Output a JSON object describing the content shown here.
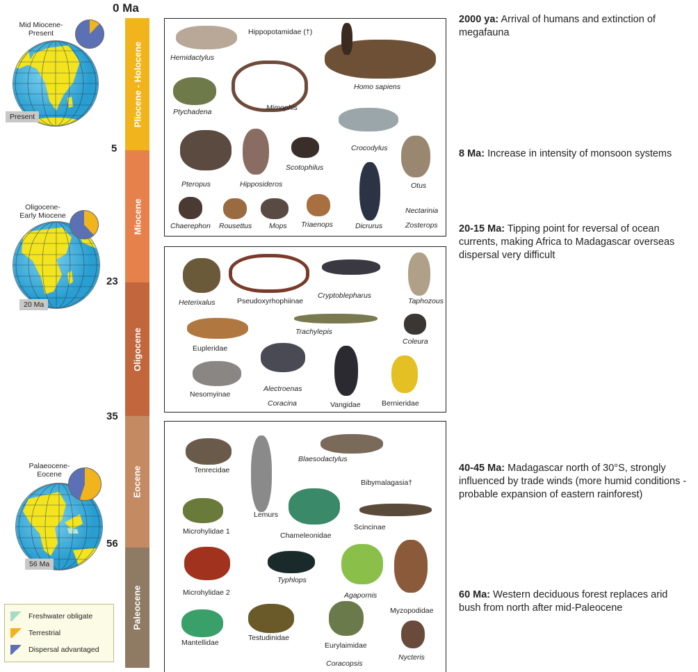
{
  "timeline": {
    "ticks": [
      "0 Ma",
      "5",
      "23",
      "35",
      "56"
    ],
    "eras": [
      "Pliocene - Holocene",
      "Miocene",
      "Oligocene",
      "Eocene",
      "Paleocene"
    ],
    "colors": [
      "#f2b41c",
      "#e7814b",
      "#c2663d",
      "#c48a62",
      "#8f7a63"
    ]
  },
  "globes": [
    {
      "title": "Mid Miocene-\nPresent",
      "tag": "Present",
      "pie_dispersal_fraction": 0.88
    },
    {
      "title": "Oligocene-\nEarly Miocene",
      "tag": "20 Ma",
      "pie_dispersal_fraction": 0.62
    },
    {
      "title": "Palaeocene-\nEocene",
      "tag": "56 Ma",
      "pie_dispersal_fraction": 0.45
    }
  ],
  "legend": {
    "items": [
      {
        "label": "Freshwater obligate",
        "color": "#a6dcc5"
      },
      {
        "label": "Terrestrial",
        "color": "#f2b41c"
      },
      {
        "label": "Dispersal advantaged",
        "color": "#5b70b5"
      }
    ]
  },
  "panel1": {
    "hippopotamidae": "Hippopotamidae (†)",
    "hemidactylus": "Hemidactylus",
    "ptychadena": "Ptychadena",
    "mimophis": "Mimophis",
    "homo": "Homo sapiens",
    "crocodylus": "Crocodylus",
    "pteropus": "Pteropus",
    "hipposideros": "Hipposideros",
    "scotophilus": "Scotophilus",
    "otus": "Otus",
    "dicrurus": "Dicrurus",
    "nectarinia": "Nectarinia",
    "zosterops": "Zosterops",
    "chaerephon": "Chaerephon",
    "rousettus": "Rousettus",
    "mops": "Mops",
    "triaenops": "Triaenops"
  },
  "panel2": {
    "heterixalus": "Heterixalus",
    "pseudoxy": "Pseudoxyrhophiinae",
    "cryptoblepharus": "Cryptoblepharus",
    "taphozous": "Taphozous",
    "eupleridae": "Eupleridae",
    "trachylepis": "Trachylepis",
    "coleura": "Coleura",
    "nesomyinae": "Nesomyinae",
    "alectroenas": "Alectroenas",
    "coracina": "Coracina",
    "vangidae": "Vangidae",
    "bernieridae": "Bernieridae"
  },
  "panel3": {
    "tenrecidae": "Tenrecidae",
    "blaesodactylus": "Blaesodactylus",
    "bibymalagasia": "Bibymalagasia†",
    "lemurs": "Lemurs",
    "microhylidae1": "Microhylidae 1",
    "chameleonidae": "Chameleonidae",
    "scincinae": "Scincinae",
    "microhylidae2": "Microhylidae 2",
    "typhlops": "Typhlops",
    "agapornis": "Agapornis",
    "myzopodidae": "Myzopodidae",
    "mantellidae": "Mantellidae",
    "testudinidae": "Testudinidae",
    "eurylaimidae": "Eurylaimidae",
    "coracopsis": "Coracopsis",
    "nycteris": "Nycteris"
  },
  "events": [
    {
      "date": "2000 ya:",
      "text": " Arrival of humans and extinction of megafauna"
    },
    {
      "date": "8 Ma:",
      "text": " Increase in intensity of monsoon systems"
    },
    {
      "date": "20-15 Ma:",
      "text": " Tipping point for reversal of ocean currents, making Africa to Madagascar overseas dispersal very difficult"
    },
    {
      "date": "40-45 Ma:",
      "text": " Madagascar north of 30°S, strongly influenced by trade winds (more humid conditions - probable expansion of eastern rainforest)"
    },
    {
      "date": "60 Ma:",
      "text": " Western deciduous forest replaces arid bush from north after mid-Paleocene"
    }
  ]
}
